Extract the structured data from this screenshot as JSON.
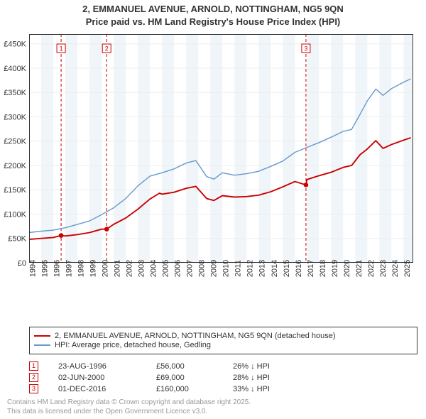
{
  "title_line1": "2, EMMANUEL AVENUE, ARNOLD, NOTTINGHAM, NG5 9QN",
  "title_line2": "Price paid vs. HM Land Registry's House Price Index (HPI)",
  "chart": {
    "type": "line",
    "background_color": "#ffffff",
    "plot_border_color": "#333333",
    "grid_color": "#eeeeee",
    "x_years": [
      1994,
      1995,
      1996,
      1997,
      1998,
      1999,
      2000,
      2001,
      2002,
      2003,
      2004,
      2005,
      2006,
      2007,
      2008,
      2009,
      2010,
      2011,
      2012,
      2013,
      2014,
      2015,
      2016,
      2017,
      2018,
      2019,
      2020,
      2021,
      2022,
      2023,
      2024,
      2025
    ],
    "x_label_fontsize": 11,
    "x_label_color": "#333333",
    "y_ticks": [
      0,
      50000,
      100000,
      150000,
      200000,
      250000,
      300000,
      350000,
      400000,
      450000
    ],
    "y_tick_labels": [
      "£0",
      "£50K",
      "£100K",
      "£150K",
      "£200K",
      "£250K",
      "£300K",
      "£350K",
      "£400K",
      "£450K"
    ],
    "y_label_fontsize": 11,
    "y_label_color": "#333333",
    "ylim": [
      0,
      470000
    ],
    "xlim": [
      1994,
      2025.8
    ],
    "alt_band_color": "#e8eff6",
    "alt_band_opacity": 0.65,
    "series": [
      {
        "name": "HPI: Average price, detached house, Gedling",
        "color": "#6699cc",
        "line_width": 1.4,
        "data": [
          [
            1994,
            62000
          ],
          [
            1995,
            65000
          ],
          [
            1996,
            67000
          ],
          [
            1997,
            72000
          ],
          [
            1998,
            79000
          ],
          [
            1999,
            86000
          ],
          [
            2000,
            99000
          ],
          [
            2001,
            113000
          ],
          [
            2002,
            132000
          ],
          [
            2003,
            158000
          ],
          [
            2004,
            178000
          ],
          [
            2005,
            185000
          ],
          [
            2006,
            193000
          ],
          [
            2007,
            205000
          ],
          [
            2007.8,
            210000
          ],
          [
            2008.7,
            177000
          ],
          [
            2009.3,
            172000
          ],
          [
            2010,
            185000
          ],
          [
            2011,
            180000
          ],
          [
            2012,
            183000
          ],
          [
            2013,
            188000
          ],
          [
            2014,
            198000
          ],
          [
            2015,
            209000
          ],
          [
            2016,
            227000
          ],
          [
            2017,
            237000
          ],
          [
            2018,
            247000
          ],
          [
            2019,
            258000
          ],
          [
            2020,
            270000
          ],
          [
            2020.7,
            274000
          ],
          [
            2021.4,
            305000
          ],
          [
            2022,
            333000
          ],
          [
            2022.7,
            357000
          ],
          [
            2023.3,
            344000
          ],
          [
            2024,
            358000
          ],
          [
            2025,
            371000
          ],
          [
            2025.6,
            378000
          ]
        ]
      },
      {
        "name": "2, EMMANUEL AVENUE, ARNOLD, NOTTINGHAM, NG5 9QN (detached house)",
        "color": "#cc0000",
        "line_width": 1.9,
        "data": [
          [
            1994,
            48000
          ],
          [
            1995,
            50000
          ],
          [
            1996,
            52000
          ],
          [
            1996.65,
            56000
          ],
          [
            1997,
            55000
          ],
          [
            1998,
            58000
          ],
          [
            1999,
            62000
          ],
          [
            2000,
            69000
          ],
          [
            2000.42,
            69000
          ],
          [
            2001,
            79000
          ],
          [
            2002,
            92000
          ],
          [
            2003,
            110000
          ],
          [
            2004,
            131000
          ],
          [
            2004.8,
            143000
          ],
          [
            2005,
            141000
          ],
          [
            2006,
            145000
          ],
          [
            2007,
            153000
          ],
          [
            2007.8,
            157000
          ],
          [
            2008.7,
            132000
          ],
          [
            2009.3,
            128000
          ],
          [
            2010,
            138000
          ],
          [
            2011,
            135000
          ],
          [
            2012,
            136000
          ],
          [
            2013,
            139000
          ],
          [
            2014,
            146000
          ],
          [
            2015,
            156000
          ],
          [
            2016,
            167000
          ],
          [
            2016.92,
            160000
          ],
          [
            2017,
            171000
          ],
          [
            2018,
            179000
          ],
          [
            2019,
            186000
          ],
          [
            2020,
            196000
          ],
          [
            2020.7,
            200000
          ],
          [
            2021.4,
            222000
          ],
          [
            2022,
            234000
          ],
          [
            2022.7,
            251000
          ],
          [
            2023.3,
            235000
          ],
          [
            2024,
            243000
          ],
          [
            2025,
            252000
          ],
          [
            2025.6,
            257000
          ]
        ]
      }
    ],
    "sale_markers": [
      {
        "n": "1",
        "year": 1996.65,
        "price": 56000,
        "color": "#cc0000",
        "line_dash": "4,3"
      },
      {
        "n": "2",
        "year": 2000.42,
        "price": 69000,
        "color": "#cc0000",
        "line_dash": "4,3"
      },
      {
        "n": "3",
        "year": 2016.92,
        "price": 160000,
        "color": "#cc0000",
        "line_dash": "4,3"
      }
    ]
  },
  "legend": {
    "border_color": "#333333",
    "fontsize": 11,
    "rows": [
      {
        "color": "#cc0000",
        "label": "2, EMMANUEL AVENUE, ARNOLD, NOTTINGHAM, NG5 9QN (detached house)"
      },
      {
        "color": "#6699cc",
        "label": "HPI: Average price, detached house, Gedling"
      }
    ]
  },
  "sales_table": {
    "marker_border_color": "#cc0000",
    "marker_text_color": "#cc0000",
    "fontsize": 11,
    "rows": [
      {
        "n": "1",
        "date": "23-AUG-1996",
        "price": "£56,000",
        "delta": "26% ↓ HPI"
      },
      {
        "n": "2",
        "date": "02-JUN-2000",
        "price": "£69,000",
        "delta": "28% ↓ HPI"
      },
      {
        "n": "3",
        "date": "01-DEC-2016",
        "price": "£160,000",
        "delta": "33% ↓ HPI"
      }
    ]
  },
  "footer": {
    "line1": "Contains HM Land Registry data © Crown copyright and database right 2025.",
    "line2": "This data is licensed under the Open Government Licence v3.0.",
    "color": "#999999",
    "fontsize": 10
  }
}
